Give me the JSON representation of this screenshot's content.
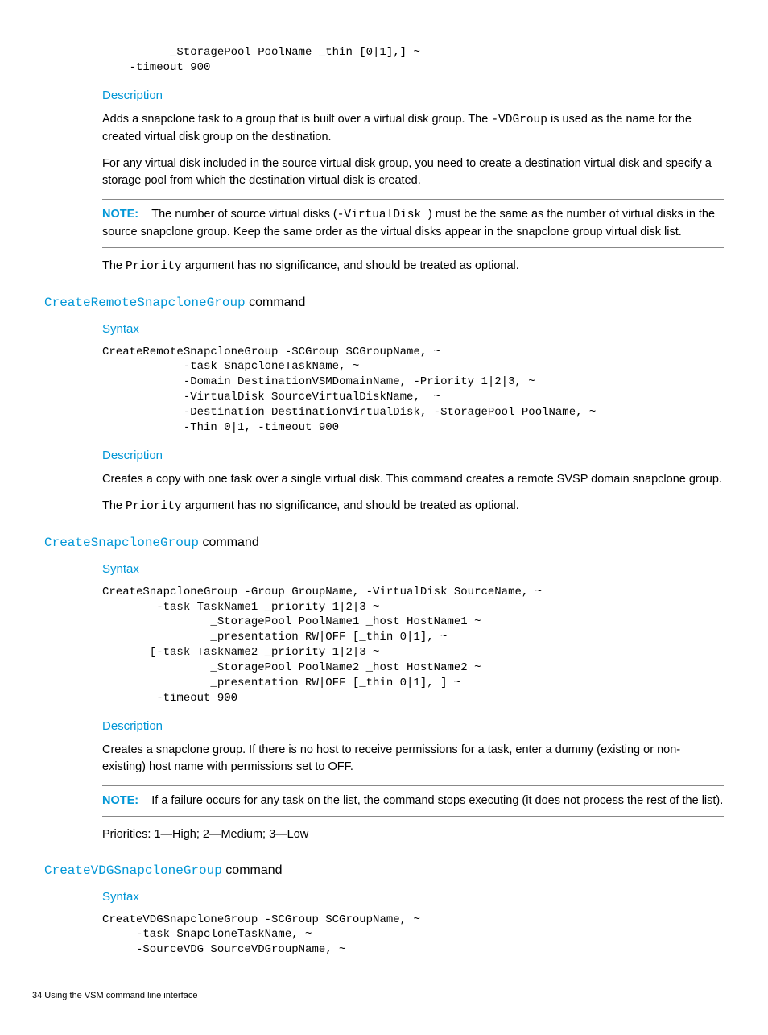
{
  "colors": {
    "link": "#0096d6",
    "text": "#000000",
    "rule": "#888888",
    "background": "#ffffff"
  },
  "blocks": {
    "top_code": "          _StoragePool PoolName _thin [0|1],] ~\n    -timeout 900",
    "desc_label_1": "Description",
    "para1a": "Adds a snapclone task to a group that is built over a virtual disk group. The ",
    "para1a_code": "-VDGroup",
    "para1a_end": " is used as the name for the created virtual disk group on the destination.",
    "para2": "For any virtual disk included in the source virtual disk group, you need to create a destination virtual disk and specify a storage pool from which the destination virtual disk is created.",
    "note1_label": "NOTE:",
    "note1_a": "The number of source virtual disks (",
    "note1_code": "-VirtualDisk ",
    "note1_b": ") must be the same as the number of virtual disks in the source snapclone group. Keep the same order as the virtual disks appear in the snapclone group virtual disk list.",
    "para3a": "The ",
    "para3_code": "Priority",
    "para3b": " argument has no significance, and should be treated as optional.",
    "sec2_cmd": "CreateRemoteSnapcloneGroup",
    "sec2_word": " command",
    "syntax_label_2": "Syntax",
    "code2": "CreateRemoteSnapcloneGroup -SCGroup SCGroupName, ~\n            -task SnapcloneTaskName, ~\n            -Domain DestinationVSMDomainName, -Priority 1|2|3, ~\n            -VirtualDisk SourceVirtualDiskName,  ~\n            -Destination DestinationVirtualDisk, -StoragePool PoolName, ~\n            -Thin 0|1, -timeout 900",
    "desc_label_2": "Description",
    "para4": "Creates a copy with one task over a single virtual disk. This command creates a remote SVSP domain snapclone group.",
    "para5a": "The ",
    "para5_code": "Priority",
    "para5b": " argument has no significance, and should be treated as optional.",
    "sec3_cmd": "CreateSnapcloneGroup",
    "sec3_word": " command",
    "syntax_label_3": "Syntax",
    "code3": "CreateSnapcloneGroup -Group GroupName, -VirtualDisk SourceName, ~\n        -task TaskName1 _priority 1|2|3 ~\n                _StoragePool PoolName1 _host HostName1 ~\n                _presentation RW|OFF [_thin 0|1], ~\n       [-task TaskName2 _priority 1|2|3 ~\n                _StoragePool PoolName2 _host HostName2 ~\n                _presentation RW|OFF [_thin 0|1], ] ~\n        -timeout 900",
    "desc_label_3": "Description",
    "para6": "Creates a snapclone group. If there is no host to receive permissions for a task, enter a dummy (existing or non-existing) host name with permissions set to OFF.",
    "note2_label": "NOTE:",
    "note2_text": "If a failure occurs for any task on the list, the command stops executing (it does not process the rest of the list).",
    "para7": "Priorities: 1—High; 2—Medium; 3—Low",
    "sec4_cmd": "CreateVDGSnapcloneGroup",
    "sec4_word": " command",
    "syntax_label_4": "Syntax",
    "code4": "CreateVDGSnapcloneGroup -SCGroup SCGroupName, ~\n     -task SnapcloneTaskName, ~\n     -SourceVDG SourceVDGroupName, ~",
    "footer": "34     Using the VSM command line interface"
  }
}
